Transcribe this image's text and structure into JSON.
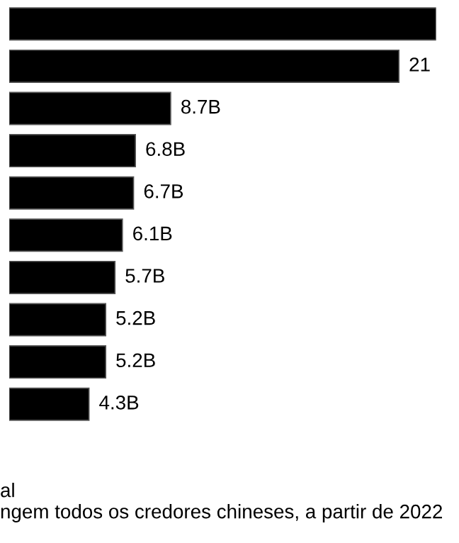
{
  "chart_data": {
    "type": "bar",
    "orientation": "horizontal",
    "categories": [
      null,
      null,
      null,
      null,
      null,
      null,
      null,
      null,
      null,
      null
    ],
    "values": [
      23,
      21,
      8.7,
      6.8,
      6.7,
      6.1,
      5.7,
      5.2,
      5.2,
      4.3
    ],
    "value_labels": [
      null,
      "21",
      "8.7B",
      "6.8B",
      "6.7B",
      "6.1B",
      "5.7B",
      "5.2B",
      "5.2B",
      "4.3B"
    ],
    "color": "#000000",
    "xlim": [
      0,
      23
    ],
    "tick_labels": false,
    "grid": false,
    "legend": false,
    "annotations": [
      "al",
      "ngem todos os credores chineses, a partir de 2022"
    ]
  }
}
